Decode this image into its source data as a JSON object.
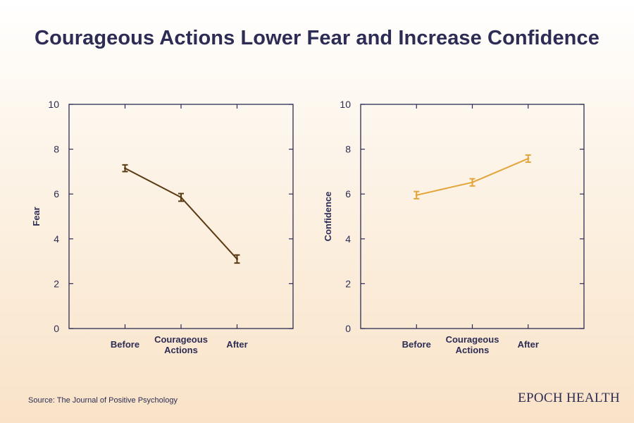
{
  "title": "Courageous Actions Lower Fear and Increase Confidence",
  "source": "Source: The Journal of Positive Psychology",
  "brand": "EPOCH HEALTH",
  "colors": {
    "text": "#2c2c54",
    "fear": "#5a3a12",
    "confidence": "#e3a43a"
  },
  "chart_data": [
    {
      "type": "line",
      "categories": [
        "Before",
        "Courageous\nActions",
        "After"
      ],
      "ylabel": "Fear",
      "ylim": [
        0,
        10
      ],
      "yticks": [
        0,
        2,
        4,
        6,
        8,
        10
      ],
      "series": [
        {
          "values": [
            7.15,
            5.85,
            3.1
          ],
          "error": [
            0.15,
            0.17,
            0.18
          ],
          "color": "#5a3a12"
        }
      ],
      "grid": false
    },
    {
      "type": "line",
      "categories": [
        "Before",
        "Courageous\nActions",
        "After"
      ],
      "ylabel": "Confidence",
      "ylim": [
        0,
        10
      ],
      "yticks": [
        0,
        2,
        4,
        6,
        8,
        10
      ],
      "series": [
        {
          "values": [
            5.95,
            6.52,
            7.58
          ],
          "error": [
            0.16,
            0.16,
            0.16
          ],
          "color": "#e3a43a"
        }
      ],
      "grid": false
    }
  ]
}
